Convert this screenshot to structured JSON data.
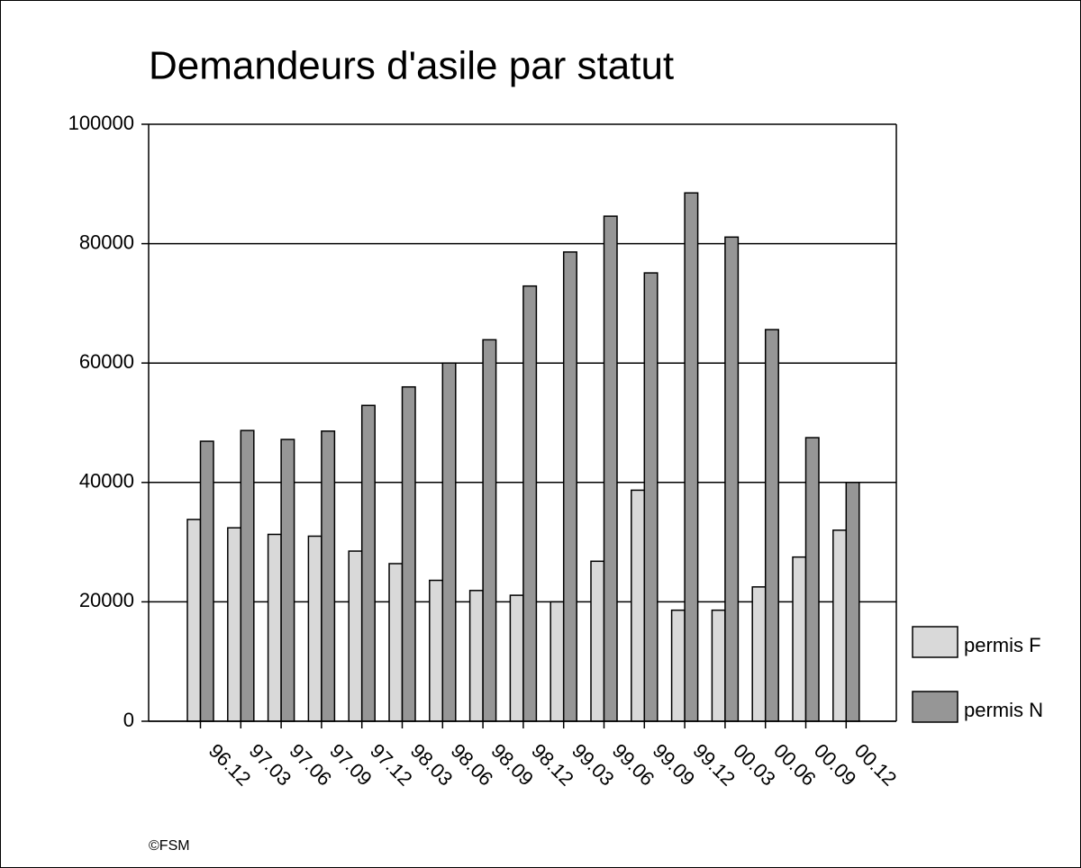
{
  "chart_data": {
    "type": "bar",
    "title": "Demandeurs d'asile par statut",
    "categories": [
      "96.12",
      "97.03",
      "97.06",
      "97.09",
      "97.12",
      "98.03",
      "98.06",
      "98.09",
      "98.12",
      "99.03",
      "99.06",
      "99.09",
      "99.12",
      "00.03",
      "00.06",
      "00.09",
      "00.12"
    ],
    "series": [
      {
        "name": "permis F",
        "color": "#d9d9d9",
        "values": [
          33800,
          32400,
          31300,
          31000,
          28500,
          26400,
          23600,
          21900,
          21100,
          20000,
          26800,
          38700,
          18600,
          18600,
          22500,
          27500,
          32000
        ]
      },
      {
        "name": "permis N",
        "color": "#969696",
        "values": [
          46900,
          48700,
          47200,
          48600,
          52900,
          56000,
          60000,
          63900,
          72900,
          78600,
          84600,
          75100,
          88500,
          81100,
          65600,
          47500,
          40000
        ]
      }
    ],
    "ylim": [
      0,
      100000
    ],
    "yticks": [
      0,
      20000,
      40000,
      60000,
      80000,
      100000
    ],
    "grid": true,
    "legend": "right",
    "footnote": "©FSM"
  }
}
